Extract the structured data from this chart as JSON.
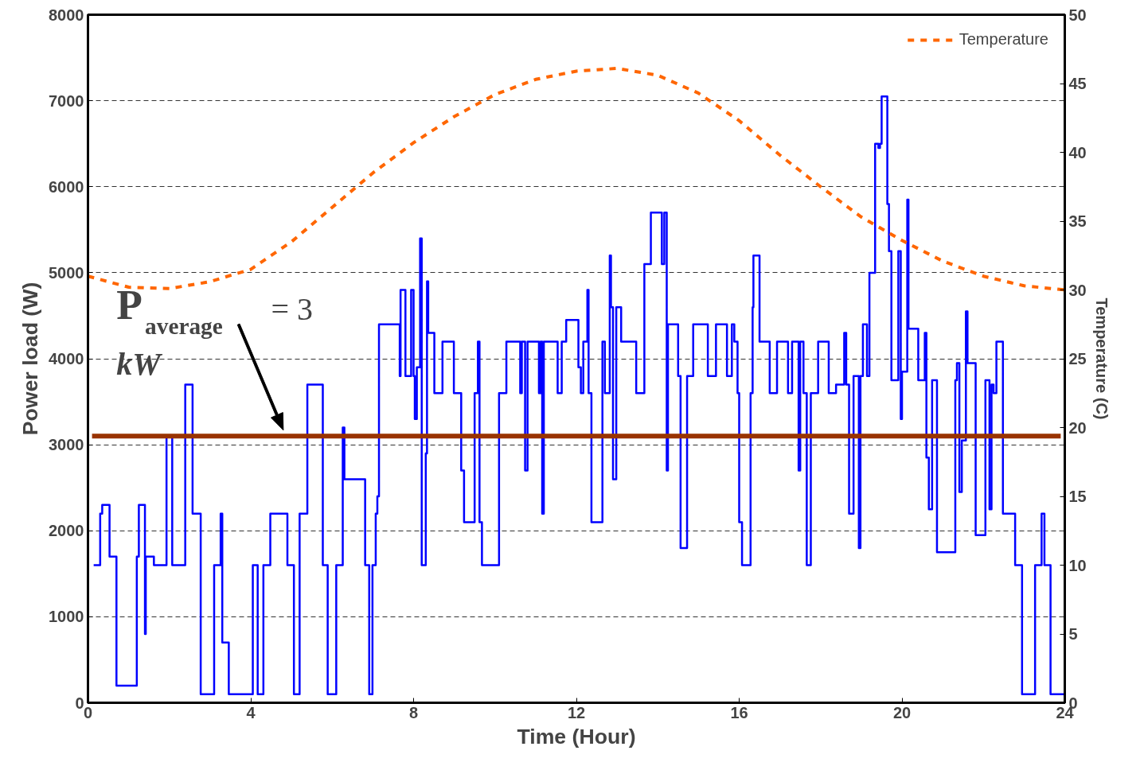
{
  "chart_data": {
    "type": "step",
    "xlabel": "Time (Hour)",
    "ylabel": "Power load (W)",
    "y2label": "Temperature (C)",
    "xlim": [
      0,
      24
    ],
    "xticks": [
      0,
      4,
      8,
      12,
      16,
      20,
      24
    ],
    "ylim": [
      0,
      8000
    ],
    "yticks": [
      0,
      1000,
      2000,
      3000,
      4000,
      5000,
      6000,
      7000,
      8000
    ],
    "y2lim": [
      0,
      50
    ],
    "y2ticks": [
      0,
      5,
      10,
      15,
      20,
      25,
      30,
      35,
      40,
      45,
      50
    ],
    "grid": "y",
    "legend": "top right",
    "series": [
      {
        "color": "#0000ff",
        "x": [
          0.14,
          0.3,
          0.35,
          0.53,
          0.7,
          1.2,
          1.25,
          1.4,
          1.42,
          1.62,
          1.93,
          2.07,
          2.39,
          2.57,
          2.77,
          3.1,
          3.26,
          3.3,
          3.46,
          4.05,
          4.17,
          4.31,
          4.48,
          4.9,
          5.06,
          5.2,
          5.39,
          5.77,
          5.89,
          6.1,
          6.26,
          6.3,
          6.81,
          6.91,
          6.99,
          7.07,
          7.11,
          7.15,
          7.66,
          7.68,
          7.8,
          7.94,
          8.0,
          8.03,
          8.08,
          8.16,
          8.2,
          8.3,
          8.33,
          8.36,
          8.51,
          8.71,
          8.99,
          9.17,
          9.24,
          9.5,
          9.58,
          9.62,
          9.68,
          10.1,
          10.28,
          10.62,
          10.66,
          10.74,
          10.8,
          11.08,
          11.12,
          11.16,
          11.2,
          11.54,
          11.64,
          11.75,
          12.05,
          12.11,
          12.17,
          12.27,
          12.3,
          12.37,
          12.64,
          12.7,
          12.82,
          12.85,
          12.9,
          12.98,
          13.1,
          13.47,
          13.67,
          13.83,
          14.1,
          14.16,
          14.22,
          14.25,
          14.5,
          14.56,
          14.72,
          14.87,
          15.23,
          15.43,
          15.7,
          15.82,
          15.88,
          15.96,
          16.0,
          16.07,
          16.28,
          16.33,
          16.35,
          16.5,
          16.75,
          16.93,
          17.2,
          17.3,
          17.46,
          17.5,
          17.58,
          17.66,
          17.76,
          17.94,
          18.2,
          18.38,
          18.58,
          18.63,
          18.7,
          18.81,
          18.94,
          18.98,
          19.04,
          19.14,
          19.2,
          19.34,
          19.42,
          19.46,
          19.5,
          19.64,
          19.68,
          19.74,
          19.91,
          19.97,
          20.0,
          20.13,
          20.16,
          20.4,
          20.56,
          20.6,
          20.66,
          20.74,
          20.86,
          21.31,
          21.35,
          21.41,
          21.47,
          21.57,
          21.61,
          21.81,
          22.05,
          22.15,
          22.2,
          22.25,
          22.32,
          22.48,
          22.78,
          22.95,
          23.27,
          23.43,
          23.5,
          23.65,
          24.0
        ],
        "values": [
          1600,
          2200,
          2300,
          1700,
          200,
          1700,
          2300,
          800,
          1700,
          1600,
          3100,
          1600,
          3700,
          2200,
          100,
          1600,
          2200,
          700,
          100,
          1600,
          100,
          1600,
          2200,
          1600,
          100,
          2200,
          3700,
          1600,
          100,
          1600,
          3200,
          2600,
          1600,
          100,
          1600,
          2200,
          2400,
          4400,
          3800,
          4800,
          3800,
          4800,
          3800,
          3300,
          3900,
          5400,
          1600,
          2900,
          4900,
          4300,
          3600,
          4200,
          3600,
          2700,
          2100,
          3600,
          4200,
          2100,
          1600,
          3600,
          4200,
          3600,
          4200,
          2700,
          4200,
          3600,
          4200,
          2200,
          4200,
          3600,
          4200,
          4450,
          3900,
          3600,
          4200,
          4800,
          3600,
          2100,
          4200,
          3600,
          5200,
          4600,
          2600,
          4600,
          4200,
          3600,
          5100,
          5700,
          5100,
          5700,
          2700,
          4400,
          3800,
          1800,
          3800,
          4400,
          3800,
          4400,
          3800,
          4400,
          4200,
          3600,
          2100,
          1600,
          3600,
          4600,
          5200,
          4200,
          3600,
          4200,
          3600,
          4200,
          2700,
          4200,
          3600,
          1600,
          3600,
          4200,
          3600,
          3700,
          4300,
          3700,
          2200,
          3800,
          1800,
          3800,
          4400,
          3800,
          5000,
          6500,
          6450,
          6500,
          7050,
          5800,
          5250,
          3750,
          5250,
          3300,
          3850,
          5850,
          4350,
          3750,
          4300,
          2850,
          2250,
          3750,
          1750,
          3750,
          3950,
          2450,
          3050,
          4550,
          3950,
          1950,
          3750,
          2250,
          3700,
          3600,
          4200,
          2200,
          1600,
          100,
          1600,
          2200,
          1600,
          100,
          100
        ]
      },
      {
        "type": "line",
        "name": "Temperature",
        "color": "#ff6600",
        "axis": "y2",
        "line_style": "dashed",
        "x": [
          0,
          1,
          2,
          3,
          4,
          5,
          6,
          7,
          8,
          9,
          10,
          11,
          12,
          13,
          14,
          15,
          16,
          17,
          18,
          19,
          20,
          21,
          22,
          23,
          24
        ],
        "values": [
          31,
          30.2,
          30.1,
          30.6,
          31.5,
          33.5,
          36,
          38.5,
          40.7,
          42.6,
          44.2,
          45.3,
          45.9,
          46.1,
          45.6,
          44.3,
          42.3,
          39.8,
          37.5,
          35.3,
          33.6,
          32.1,
          31,
          30.3,
          30
        ]
      }
    ],
    "ref_lines": [
      {
        "axis": "y",
        "value": 3100,
        "color": "#993300"
      }
    ],
    "annotations": [
      "P$_{average}$ = 3 kW"
    ]
  }
}
